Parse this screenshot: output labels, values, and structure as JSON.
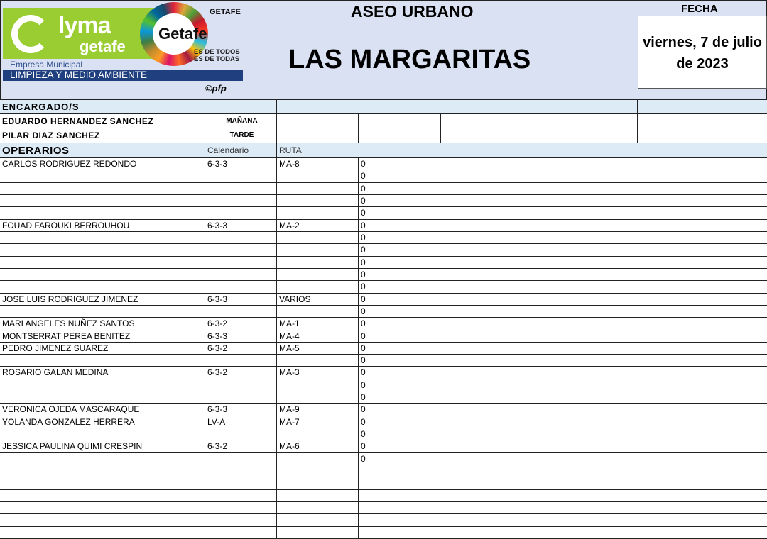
{
  "header": {
    "logo_text": "lyma getafe",
    "logo_company": "Empresa Municipal",
    "logo_division": "LIMPIEZA Y MEDIO AMBIENTE",
    "getafe_logo": "Getafe",
    "getafe_ayto": "GETAFE",
    "slogan1": "ES DE TODOS",
    "slogan2": "ES DE TODAS",
    "copyright": "©pfp",
    "service": "ASEO URBANO",
    "site": "LAS MARGARITAS",
    "date_label": "FECHA",
    "date_value": "viernes, 7 de julio de 2023"
  },
  "colors": {
    "header_bg": "#d9e1f2",
    "section_bg": "#ddebf7",
    "brand_green": "#9acd32",
    "brand_blue": "#1f3f7f"
  },
  "encargados": {
    "label": "ENCARGADO/S",
    "rows": [
      {
        "name": "EDUARDO HERNANDEZ SANCHEZ",
        "shift": "MAÑANA"
      },
      {
        "name": "PILAR DIAZ SANCHEZ",
        "shift": "TARDE"
      }
    ]
  },
  "operarios": {
    "label": "OPERARIOS",
    "col_calendar": "Calendario",
    "col_route": "RUTA",
    "rows": [
      {
        "name": "CARLOS RODRIGUEZ REDONDO",
        "cal": "6-3-3",
        "route": "MA-8",
        "val": "0"
      },
      {
        "name": "",
        "cal": "",
        "route": "",
        "val": "0"
      },
      {
        "name": "",
        "cal": "",
        "route": "",
        "val": "0"
      },
      {
        "name": "",
        "cal": "",
        "route": "",
        "val": "0"
      },
      {
        "name": "",
        "cal": "",
        "route": "",
        "val": "0"
      },
      {
        "name": "FOUAD FAROUKI BERROUHOU",
        "cal": "6-3-3",
        "route": "MA-2",
        "val": "0"
      },
      {
        "name": "",
        "cal": "",
        "route": "",
        "val": "0"
      },
      {
        "name": "",
        "cal": "",
        "route": "",
        "val": "0"
      },
      {
        "name": "",
        "cal": "",
        "route": "",
        "val": "0"
      },
      {
        "name": "",
        "cal": "",
        "route": "",
        "val": "0"
      },
      {
        "name": "",
        "cal": "",
        "route": "",
        "val": "0"
      },
      {
        "name": "JOSE LUIS RODRIGUEZ JIMENEZ",
        "cal": "6-3-3",
        "route": "VARIOS",
        "val": "0"
      },
      {
        "name": "",
        "cal": "",
        "route": "",
        "val": "0"
      },
      {
        "name": "MARI ANGELES NUÑEZ SANTOS",
        "cal": "6-3-2",
        "route": "MA-1",
        "val": "0"
      },
      {
        "name": "MONTSERRAT PEREA BENITEZ",
        "cal": "6-3-3",
        "route": "MA-4",
        "val": "0"
      },
      {
        "name": "PEDRO JIMENEZ SUAREZ",
        "cal": "6-3-2",
        "route": "MA-5",
        "val": "0"
      },
      {
        "name": "",
        "cal": "",
        "route": "",
        "val": "0"
      },
      {
        "name": "ROSARIO GALAN MEDINA",
        "cal": "6-3-2",
        "route": "MA-3",
        "val": "0"
      },
      {
        "name": "",
        "cal": "",
        "route": "",
        "val": "0"
      },
      {
        "name": "",
        "cal": "",
        "route": "",
        "val": "0"
      },
      {
        "name": "VERONICA OJEDA MASCARAQUE",
        "cal": "6-3-3",
        "route": "MA-9",
        "val": "0"
      },
      {
        "name": "YOLANDA GONZALEZ HERRERA",
        "cal": "LV-A",
        "route": "MA-7",
        "val": "0"
      },
      {
        "name": "",
        "cal": "",
        "route": "",
        "val": "0"
      },
      {
        "name": "JESSICA PAULINA QUIMI CRESPIN",
        "cal": "6-3-2",
        "route": "MA-6",
        "val": "0"
      },
      {
        "name": "",
        "cal": "",
        "route": "",
        "val": "0"
      },
      {
        "name": "",
        "cal": "",
        "route": "",
        "val": ""
      },
      {
        "name": "",
        "cal": "",
        "route": "",
        "val": ""
      },
      {
        "name": "",
        "cal": "",
        "route": "",
        "val": ""
      },
      {
        "name": "",
        "cal": "",
        "route": "",
        "val": ""
      },
      {
        "name": "",
        "cal": "",
        "route": "",
        "val": ""
      },
      {
        "name": "",
        "cal": "",
        "route": "",
        "val": ""
      }
    ]
  }
}
